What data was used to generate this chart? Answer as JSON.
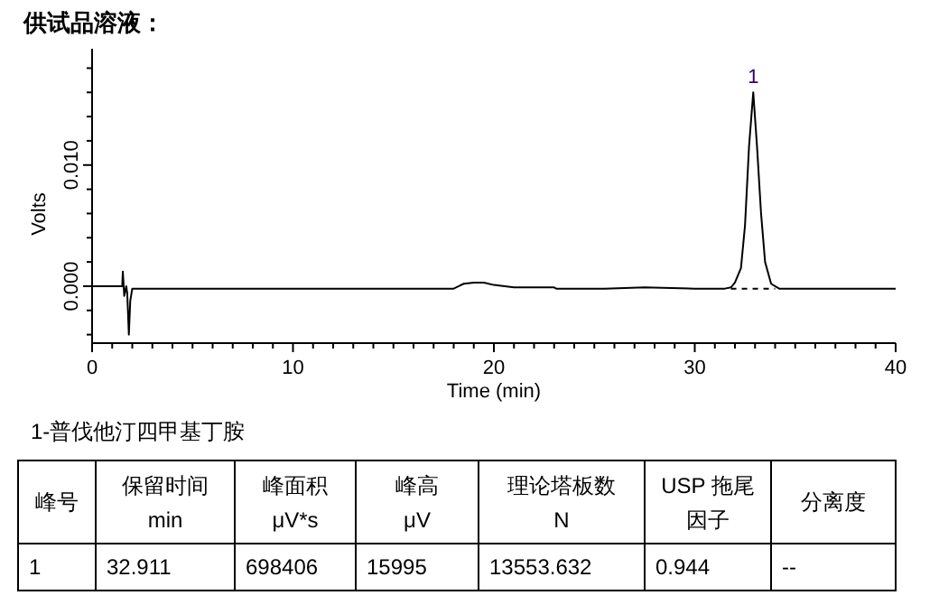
{
  "chart_data": {
    "type": "line",
    "title": "供试品溶液：",
    "xlabel": "Time (min)",
    "ylabel": "Volts",
    "xlim": [
      0,
      40
    ],
    "ylim": [
      -0.0047,
      0.0196
    ],
    "xticks": [
      0,
      {
        "value": 1,
        "label": null
      },
      {
        "value": 2,
        "label": null
      },
      {
        "value": 3,
        "label": null
      },
      {
        "value": 4,
        "label": null
      },
      {
        "value": 5,
        "label": null
      },
      {
        "value": 6,
        "label": null
      },
      {
        "value": 7,
        "label": null
      },
      {
        "value": 8,
        "label": null
      },
      {
        "value": 9,
        "label": null
      },
      10,
      {
        "value": 11,
        "label": null
      },
      {
        "value": 12,
        "label": null
      },
      {
        "value": 13,
        "label": null
      },
      {
        "value": 14,
        "label": null
      },
      {
        "value": 15,
        "label": null
      },
      {
        "value": 16,
        "label": null
      },
      {
        "value": 17,
        "label": null
      },
      {
        "value": 18,
        "label": null
      },
      {
        "value": 19,
        "label": null
      },
      20,
      {
        "value": 21,
        "label": null
      },
      {
        "value": 22,
        "label": null
      },
      {
        "value": 23,
        "label": null
      },
      {
        "value": 24,
        "label": null
      },
      {
        "value": 25,
        "label": null
      },
      {
        "value": 26,
        "label": null
      },
      {
        "value": 27,
        "label": null
      },
      {
        "value": 28,
        "label": null
      },
      {
        "value": 29,
        "label": null
      },
      30,
      {
        "value": 31,
        "label": null
      },
      {
        "value": 32,
        "label": null
      },
      {
        "value": 33,
        "label": null
      },
      {
        "value": 34,
        "label": null
      },
      {
        "value": 35,
        "label": null
      },
      {
        "value": 36,
        "label": null
      },
      {
        "value": 37,
        "label": null
      },
      {
        "value": 38,
        "label": null
      },
      {
        "value": 39,
        "label": null
      },
      40
    ],
    "yticks": [
      {
        "value": -0.004,
        "label": null
      },
      {
        "value": -0.002,
        "label": null
      },
      {
        "value": 0,
        "label": "0.000"
      },
      {
        "value": 0.002,
        "label": null
      },
      {
        "value": 0.004,
        "label": null
      },
      {
        "value": 0.006,
        "label": null
      },
      {
        "value": 0.008,
        "label": null
      },
      {
        "value": 0.01,
        "label": "0.010"
      },
      {
        "value": 0.012,
        "label": null
      },
      {
        "value": 0.014,
        "label": null
      },
      {
        "value": 0.016,
        "label": null
      },
      {
        "value": 0.018,
        "label": null
      }
    ],
    "grid": false,
    "series": [
      {
        "color": "#000000",
        "line_style": "solid",
        "x": [
          0,
          0.5,
          1.4,
          1.5,
          1.53,
          1.6,
          1.7,
          1.75,
          1.83,
          1.9,
          2.0,
          3,
          4,
          5,
          10,
          15,
          18,
          18.5,
          19,
          19.5,
          20,
          21,
          23,
          23.1,
          25.5,
          27.5,
          30,
          31.5,
          31.8,
          32.0,
          32.3,
          32.5,
          32.7,
          32.911,
          33.1,
          33.3,
          33.5,
          33.8,
          34.2,
          35,
          40
        ],
        "values": [
          0,
          0,
          0,
          0,
          0.0012,
          -0.0008,
          0,
          -0.0006,
          -0.004,
          -0.0012,
          -0.0002,
          -0.0002,
          -0.0002,
          -0.0002,
          -0.0002,
          -0.0002,
          -0.0002,
          0.0002,
          0.0003,
          0.0003,
          0.0001,
          -0.0001,
          -0.0001,
          -0.0002,
          -0.0002,
          -0.0001,
          -0.0002,
          -0.0002,
          -0.0001,
          0.0003,
          0.0015,
          0.005,
          0.0115,
          0.016,
          0.0115,
          0.006,
          0.002,
          0.0002,
          -0.0002,
          -0.0002,
          -0.0002
        ]
      },
      {
        "color": "#000000",
        "line_style": "dashed",
        "x": [
          31.8,
          34.0
        ],
        "values": [
          -0.0002,
          -0.0002
        ]
      }
    ],
    "annotations": [
      {
        "text": "1",
        "x": 32.911,
        "y": 0.016
      },
      "1-普伐他汀四甲基丁胺",
      "峰号",
      "保留时间\nmin",
      "峰面积\nμV*s",
      "峰高\nμV",
      "理论塔板数\nN",
      "USP 拖尾因子",
      "分离度",
      "1",
      "32.911",
      "698406",
      "15995",
      "13553.632",
      "0.944",
      "--"
    ]
  }
}
